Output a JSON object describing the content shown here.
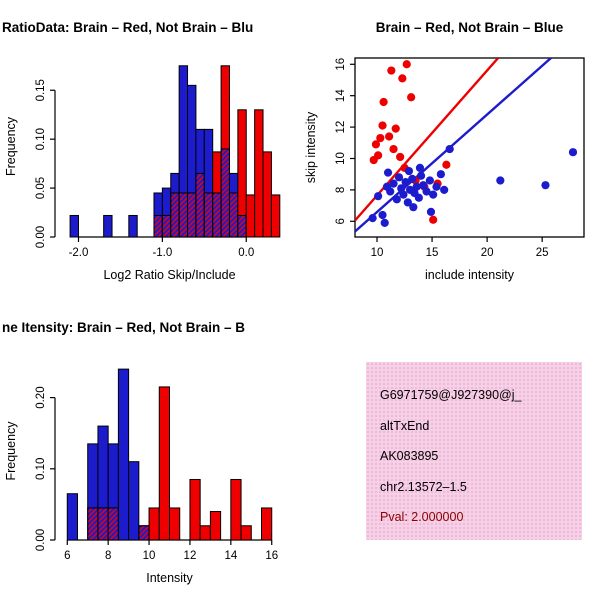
{
  "page": {
    "background": "#ffffff"
  },
  "colors": {
    "red": "#ee0000",
    "blue": "#1c1ccd",
    "axis": "#000000",
    "bar_stroke": "#000000",
    "info_bg": "#f7cfe6",
    "pval": "#8b0000",
    "text": "#000000"
  },
  "info_box": {
    "lines": [
      {
        "text": "G6971759@J927390@j_"
      },
      {
        "text": "altTxEnd"
      },
      {
        "text": "AK083895"
      },
      {
        "text": "chr2.13572–1.5"
      },
      {
        "text": "Pval: 2.000000"
      }
    ]
  },
  "chart_data": [
    {
      "id": "ratio-hist",
      "type": "bar",
      "variant": "overlaid-histogram",
      "title": "RatioData: Brain – Red, Not Brain – Blu",
      "xlabel": "Log2 Ratio Skip/Include",
      "ylabel": "Frequency",
      "xlim": [
        -2.28,
        0.45
      ],
      "ylim": [
        0,
        0.185
      ],
      "bin_width": 0.1,
      "groups": {
        "red": "Brain",
        "blue": "Not Brain"
      },
      "xticks": [
        {
          "v": -2,
          "label": "-2.0"
        },
        {
          "v": -1,
          "label": "-1.0"
        },
        {
          "v": 0,
          "label": "0.0"
        }
      ],
      "yticks": [
        {
          "v": 0,
          "label": "0.00"
        },
        {
          "v": 0.05,
          "label": "0.05"
        },
        {
          "v": 0.1,
          "label": "0.10"
        },
        {
          "v": 0.15,
          "label": "0.15"
        }
      ],
      "bins": [
        {
          "x": -2.1,
          "blue": 0.022
        },
        {
          "x": -1.7,
          "blue": 0.022
        },
        {
          "x": -1.4,
          "blue": 0.022
        },
        {
          "x": -1.1,
          "blue": 0.045,
          "red": 0.022
        },
        {
          "x": -1.0,
          "blue": 0.05,
          "red": 0.022
        },
        {
          "x": -0.9,
          "blue": 0.065,
          "red": 0.045
        },
        {
          "x": -0.8,
          "blue": 0.175,
          "red": 0.045
        },
        {
          "x": -0.7,
          "blue": 0.155,
          "red": 0.045
        },
        {
          "x": -0.6,
          "blue": 0.11,
          "red": 0.065
        },
        {
          "x": -0.5,
          "blue": 0.11,
          "red": 0.045
        },
        {
          "x": -0.4,
          "blue": 0.045,
          "red": 0.087
        },
        {
          "x": -0.3,
          "blue": 0.09,
          "red": 0.175
        },
        {
          "x": -0.2,
          "blue": 0.065,
          "red": 0.045
        },
        {
          "x": -0.1,
          "blue": 0.022,
          "red": 0.13
        },
        {
          "x": 0.0,
          "red": 0.043
        },
        {
          "x": 0.1,
          "red": 0.13
        },
        {
          "x": 0.2,
          "red": 0.087
        },
        {
          "x": 0.3,
          "red": 0.043
        }
      ]
    },
    {
      "id": "skip-include-scatter",
      "type": "scatter",
      "title": "Brain – Red, Not Brain – Blue",
      "xlabel": "include intensity",
      "ylabel": "skip intensity",
      "xlim": [
        8,
        28.8
      ],
      "ylim": [
        5,
        16.4
      ],
      "xticks": [
        {
          "v": 10,
          "label": "10"
        },
        {
          "v": 15,
          "label": "15"
        },
        {
          "v": 20,
          "label": "20"
        },
        {
          "v": 25,
          "label": "25"
        }
      ],
      "yticks": [
        {
          "v": 6,
          "label": "6"
        },
        {
          "v": 8,
          "label": "8"
        },
        {
          "v": 10,
          "label": "10"
        },
        {
          "v": 12,
          "label": "12"
        },
        {
          "v": 14,
          "label": "14"
        },
        {
          "v": 16,
          "label": "16"
        }
      ],
      "series": [
        {
          "name": "Brain",
          "color": "red",
          "points": [
            [
              9.7,
              9.9
            ],
            [
              9.9,
              10.9
            ],
            [
              10.1,
              10.2
            ],
            [
              10.3,
              11.3
            ],
            [
              10.5,
              12.1
            ],
            [
              10.6,
              13.6
            ],
            [
              11.1,
              11.4
            ],
            [
              11.3,
              15.6
            ],
            [
              11.5,
              10.6
            ],
            [
              11.7,
              11.9
            ],
            [
              12.1,
              10.1
            ],
            [
              12.3,
              15.1
            ],
            [
              12.5,
              9.4
            ],
            [
              12.7,
              16.0
            ],
            [
              13.1,
              13.9
            ],
            [
              13.5,
              8.6
            ],
            [
              14.3,
              8.2
            ],
            [
              15.1,
              6.1
            ],
            [
              15.5,
              8.4
            ],
            [
              16.3,
              9.6
            ]
          ]
        },
        {
          "name": "Not Brain",
          "color": "blue",
          "points": [
            [
              9.6,
              6.2
            ],
            [
              10.1,
              7.6
            ],
            [
              10.5,
              6.4
            ],
            [
              10.7,
              5.9
            ],
            [
              10.9,
              8.2
            ],
            [
              11.0,
              9.1
            ],
            [
              11.2,
              7.9
            ],
            [
              11.5,
              8.4
            ],
            [
              11.8,
              7.4
            ],
            [
              12.0,
              8.8
            ],
            [
              12.2,
              8.1
            ],
            [
              12.4,
              7.7
            ],
            [
              12.6,
              8.5
            ],
            [
              12.8,
              7.2
            ],
            [
              12.9,
              9.2
            ],
            [
              13.0,
              8.0
            ],
            [
              13.2,
              8.7
            ],
            [
              13.3,
              6.9
            ],
            [
              13.4,
              7.8
            ],
            [
              13.6,
              8.2
            ],
            [
              13.8,
              7.5
            ],
            [
              13.9,
              9.4
            ],
            [
              14.0,
              8.9
            ],
            [
              14.2,
              8.3
            ],
            [
              14.5,
              7.9
            ],
            [
              14.8,
              8.6
            ],
            [
              14.9,
              6.6
            ],
            [
              15.1,
              7.7
            ],
            [
              15.4,
              8.2
            ],
            [
              15.8,
              9.0
            ],
            [
              16.1,
              8.0
            ],
            [
              16.6,
              10.6
            ],
            [
              21.2,
              8.6
            ],
            [
              25.3,
              8.3
            ],
            [
              27.8,
              10.4
            ]
          ]
        }
      ],
      "lines": [
        {
          "name": "brain-fit",
          "color": "red",
          "x1": 8,
          "y1": 6.05,
          "x2": 21.0,
          "y2": 16.4
        },
        {
          "name": "notbrain-fit",
          "color": "blue",
          "x1": 8,
          "y1": 5.35,
          "x2": 25.8,
          "y2": 16.4
        }
      ]
    },
    {
      "id": "intensity-hist",
      "type": "bar",
      "variant": "overlaid-histogram",
      "title": "ne Itensity: Brain – Red, Not Brain – B",
      "xlabel": "Intensity",
      "ylabel": "Frequency",
      "xlim": [
        5.4,
        16.6
      ],
      "ylim": [
        0,
        0.25
      ],
      "bin_width": 0.5,
      "groups": {
        "red": "Brain",
        "blue": "Not Brain"
      },
      "xticks": [
        {
          "v": 6,
          "label": "6"
        },
        {
          "v": 8,
          "label": "8"
        },
        {
          "v": 10,
          "label": "10"
        },
        {
          "v": 12,
          "label": "12"
        },
        {
          "v": 14,
          "label": "14"
        },
        {
          "v": 16,
          "label": "16"
        }
      ],
      "yticks": [
        {
          "v": 0,
          "label": "0.00"
        },
        {
          "v": 0.1,
          "label": "0.10"
        },
        {
          "v": 0.2,
          "label": "0.20"
        }
      ],
      "bins": [
        {
          "x": 6.0,
          "blue": 0.065
        },
        {
          "x": 7.0,
          "blue": 0.135,
          "red": 0.045
        },
        {
          "x": 7.5,
          "blue": 0.16,
          "red": 0.045
        },
        {
          "x": 8.0,
          "blue": 0.135,
          "red": 0.045
        },
        {
          "x": 8.5,
          "blue": 0.24
        },
        {
          "x": 9.0,
          "blue": 0.11
        },
        {
          "x": 9.5,
          "blue": 0.02,
          "red": 0.02
        },
        {
          "x": 10.0,
          "red": 0.045
        },
        {
          "x": 10.5,
          "red": 0.215
        },
        {
          "x": 11.0,
          "red": 0.045
        },
        {
          "x": 12.0,
          "red": 0.085
        },
        {
          "x": 12.5,
          "red": 0.02
        },
        {
          "x": 13.0,
          "red": 0.04
        },
        {
          "x": 14.0,
          "red": 0.085
        },
        {
          "x": 14.5,
          "red": 0.02
        },
        {
          "x": 15.5,
          "red": 0.045
        }
      ]
    }
  ]
}
